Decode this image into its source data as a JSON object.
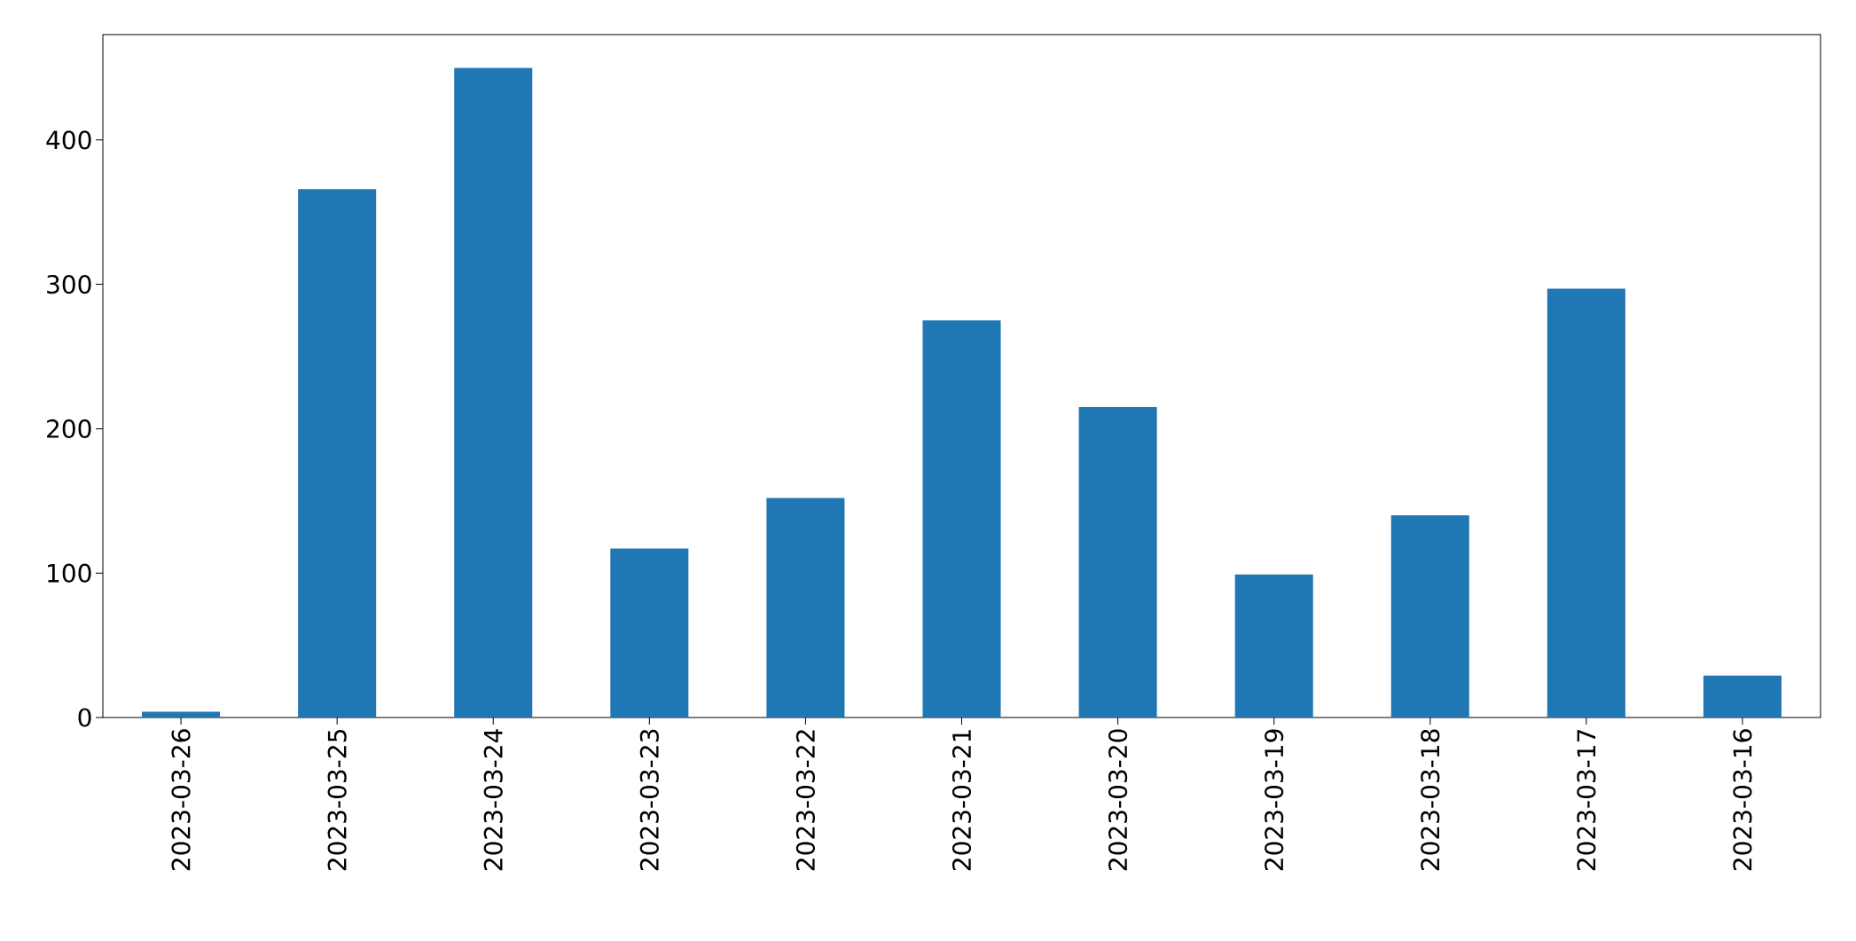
{
  "chart_data": {
    "type": "bar",
    "categories": [
      "2023-03-26",
      "2023-03-25",
      "2023-03-24",
      "2023-03-23",
      "2023-03-22",
      "2023-03-21",
      "2023-03-20",
      "2023-03-19",
      "2023-03-18",
      "2023-03-17",
      "2023-03-16"
    ],
    "values": [
      4,
      366,
      450,
      117,
      152,
      275,
      215,
      99,
      140,
      297,
      29
    ],
    "color": "#1f77b4",
    "ylim": [
      0,
      473
    ],
    "yticks": [
      0,
      100,
      200,
      300,
      400
    ]
  }
}
